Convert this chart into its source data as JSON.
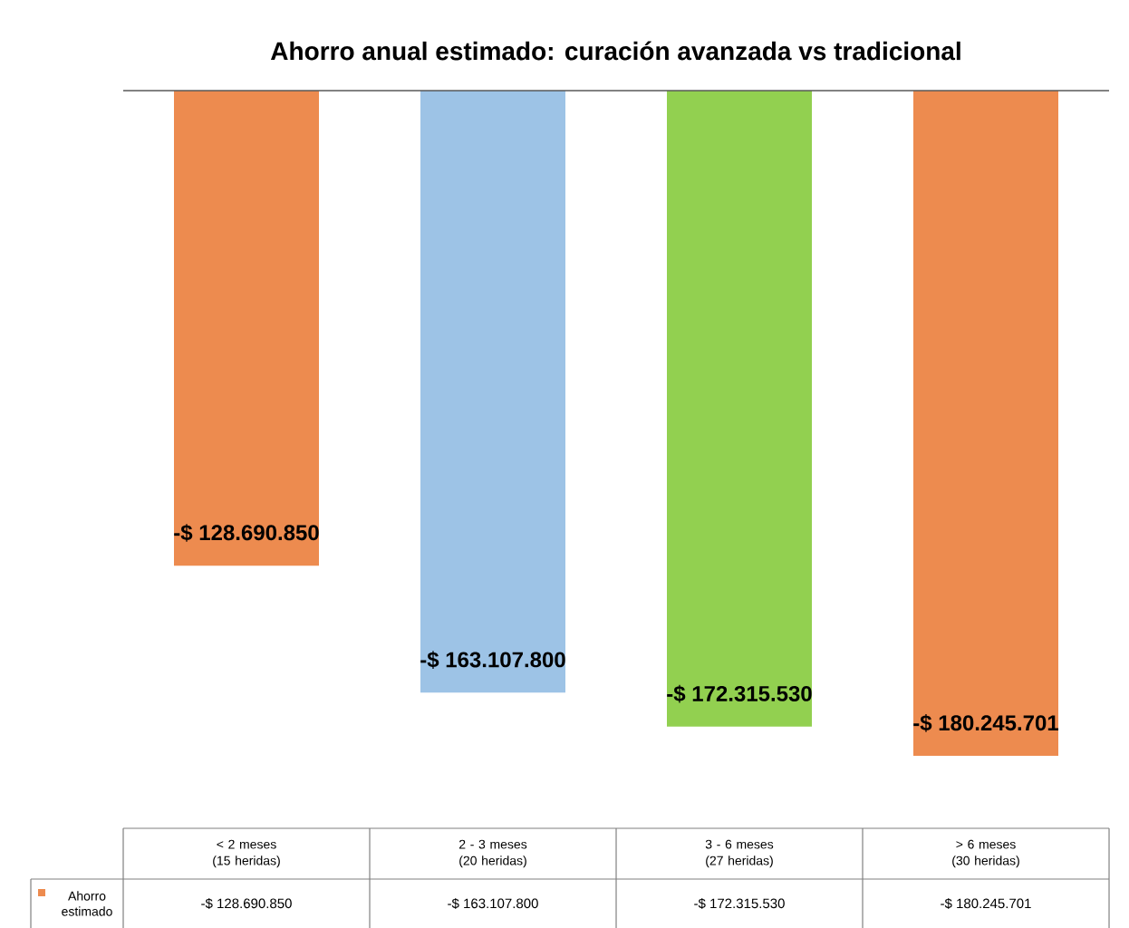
{
  "chart_data": {
    "type": "bar",
    "title": "Ahorro anual estimado: curación avanzada vs tradicional",
    "categories": [
      "< 2 meses (15 heridas)",
      "2 - 3 meses (20 heridas)",
      "3 - 6 meses (27 heridas)",
      "> 6 meses (30 heridas)"
    ],
    "series": [
      {
        "name": "Ahorro estimado",
        "color": "#ED8B4F",
        "colors": [
          "#ED8B4F",
          "#9DC3E6",
          "#92D050",
          "#ED8B4F"
        ],
        "values": [
          -128690850,
          -163107800,
          -172315530,
          -180245701
        ],
        "value_labels": [
          "-$ 128.690.850",
          "-$ 163.107.800",
          "-$ 172.315.530",
          "-$ 180.245.701"
        ]
      }
    ],
    "annotations": [
      "-$ 128.690.850",
      "-$ 163.107.800",
      "-$ 172.315.530",
      "-$ 180.245.701"
    ],
    "legend": "bottom"
  }
}
